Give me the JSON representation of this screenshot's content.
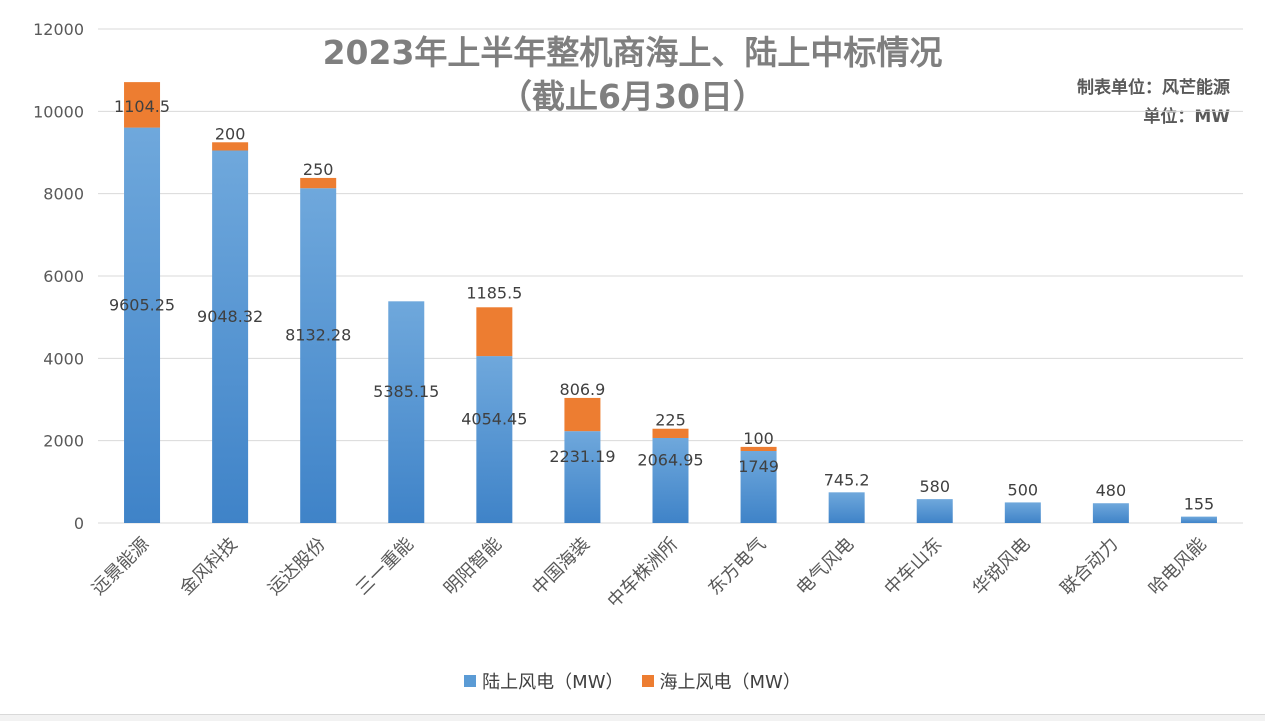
{
  "chart_data": {
    "type": "bar",
    "stacked": true,
    "title": "2023年上半年整机商海上、陆上中标情况",
    "subtitle": "（截止6月30日）",
    "source_note": "制表单位：风芒能源",
    "unit_note": "单位：MW",
    "ylim": [
      0,
      12000
    ],
    "yticks": [
      0,
      2000,
      4000,
      6000,
      8000,
      10000,
      12000
    ],
    "grid": true,
    "legend_position": "bottom",
    "categories": [
      "远景能源",
      "金风科技",
      "运达股份",
      "三一重能",
      "明阳智能",
      "中国海装",
      "中车株洲所",
      "东方电气",
      "电气风电",
      "中车山东",
      "华锐风电",
      "联合动力",
      "哈电风能"
    ],
    "series": [
      {
        "name": "陆上风电（MW）",
        "color": "#5b9bd5",
        "values": [
          9605.25,
          9048.32,
          8132.28,
          5385.15,
          4054.45,
          2231.19,
          2064.95,
          1749,
          745.2,
          580,
          500,
          480,
          155
        ]
      },
      {
        "name": "海上风电（MW）",
        "color": "#ed7d31",
        "values": [
          1104.5,
          200,
          250,
          null,
          1185.5,
          806.9,
          225,
          100,
          null,
          null,
          null,
          null,
          null
        ]
      }
    ]
  }
}
